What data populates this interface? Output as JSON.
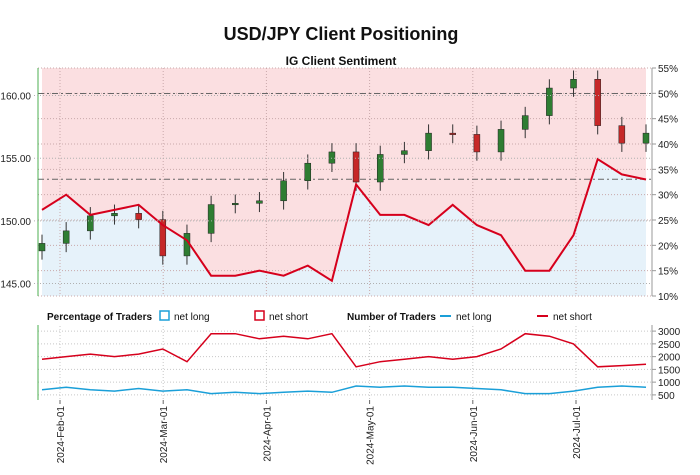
{
  "chart_data": [
    {
      "type": "candlestick",
      "title": "USD/JPY Client Positioning",
      "subtitle": "IG Client Sentiment",
      "x": [
        "2024-01-29",
        "2024-02-05",
        "2024-02-12",
        "2024-02-19",
        "2024-02-26",
        "2024-03-04",
        "2024-03-11",
        "2024-03-18",
        "2024-03-25",
        "2024-04-01",
        "2024-04-08",
        "2024-04-15",
        "2024-04-22",
        "2024-04-29",
        "2024-05-06",
        "2024-05-13",
        "2024-05-20",
        "2024-05-27",
        "2024-06-03",
        "2024-06-10",
        "2024-06-17",
        "2024-06-24",
        "2024-07-01",
        "2024-07-08",
        "2024-07-15",
        "2024-07-22"
      ],
      "price_close": [
        148.2,
        149.2,
        150.4,
        150.6,
        150.1,
        147.2,
        149.0,
        151.3,
        151.4,
        151.6,
        153.2,
        154.6,
        155.5,
        153.1,
        155.3,
        155.6,
        157.0,
        156.9,
        155.5,
        157.3,
        158.4,
        160.6,
        161.3,
        157.6,
        156.2,
        157.0
      ],
      "net_long_pct": [
        27,
        30,
        26,
        27,
        28,
        24,
        21,
        14,
        14,
        15,
        14,
        16,
        13,
        32,
        26,
        26,
        24,
        28,
        24,
        22,
        15,
        15,
        22,
        37,
        34,
        33
      ],
      "y_left": {
        "ticks": [
          "145.00",
          "150.00",
          "155.00",
          "160.00"
        ],
        "range": [
          144,
          162.2
        ]
      },
      "y_right": {
        "ticks": [
          "10%",
          "15%",
          "20%",
          "25%",
          "30%",
          "35%",
          "40%",
          "45%",
          "50%",
          "55%"
        ],
        "range": [
          10,
          55
        ]
      },
      "legend": {
        "label": "Percentage of Traders",
        "long": "net long",
        "short": "net short"
      },
      "colors": {
        "net_long_fill": "#e8f3fb",
        "net_short_fill": "#fce1e3",
        "line": "#d6001c",
        "up": "#2e7d32",
        "down": "#c62828"
      }
    },
    {
      "type": "line",
      "legend": {
        "label": "Number of Traders",
        "long": "net long",
        "short": "net short"
      },
      "x": [
        "2024-01-29",
        "2024-02-05",
        "2024-02-12",
        "2024-02-19",
        "2024-02-26",
        "2024-03-04",
        "2024-03-11",
        "2024-03-18",
        "2024-03-25",
        "2024-04-01",
        "2024-04-08",
        "2024-04-15",
        "2024-04-22",
        "2024-04-29",
        "2024-05-06",
        "2024-05-13",
        "2024-05-20",
        "2024-05-27",
        "2024-06-03",
        "2024-06-10",
        "2024-06-17",
        "2024-06-24",
        "2024-07-01",
        "2024-07-08",
        "2024-07-15",
        "2024-07-22"
      ],
      "series": [
        {
          "name": "net long",
          "values": [
            700,
            800,
            700,
            650,
            750,
            650,
            700,
            550,
            600,
            550,
            600,
            650,
            600,
            850,
            800,
            850,
            800,
            800,
            750,
            700,
            550,
            550,
            650,
            800,
            850,
            800
          ]
        },
        {
          "name": "net short",
          "values": [
            1900,
            2000,
            2100,
            2000,
            2100,
            2300,
            1800,
            2900,
            2900,
            2700,
            2800,
            2700,
            2900,
            1600,
            1800,
            1900,
            2000,
            1900,
            2000,
            2300,
            2900,
            2800,
            2500,
            1600,
            1650,
            1700
          ]
        }
      ],
      "y_right": {
        "ticks": [
          "500",
          "1000",
          "1500",
          "2000",
          "2500",
          "3000"
        ],
        "range": [
          300,
          3200
        ]
      },
      "xticks": [
        "2024-Feb-01",
        "2024-Mar-01",
        "2024-Apr-01",
        "2024-May-01",
        "2024-Jun-01",
        "2024-Jul-01"
      ],
      "colors": {
        "net_long": "#1a9fd8",
        "net_short": "#d6001c"
      }
    }
  ]
}
